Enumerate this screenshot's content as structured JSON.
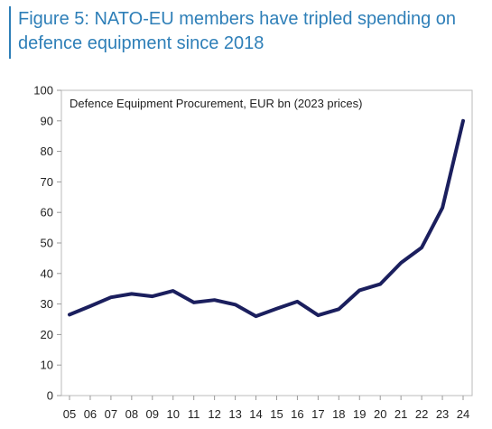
{
  "figure": {
    "title": "Figure 5: NATO-EU members have tripled spending on defence equipment since 2018"
  },
  "colors": {
    "title": "#2e7fb8",
    "accent_bar": "#2e7fb8",
    "series_line": "#1b1f5e",
    "axis": "#999999",
    "frame": "#bbbbbb",
    "text": "#222222"
  },
  "chart_data": {
    "type": "line",
    "title": "Defence Equipment Procurement, EUR bn (2023 prices)",
    "xlabel": "",
    "ylabel": "",
    "ylim": [
      0,
      100
    ],
    "yticks": [
      0,
      10,
      20,
      30,
      40,
      50,
      60,
      70,
      80,
      90,
      100
    ],
    "grid": false,
    "legend": "none",
    "categories": [
      "05",
      "06",
      "07",
      "08",
      "09",
      "10",
      "11",
      "12",
      "13",
      "14",
      "15",
      "16",
      "17",
      "18",
      "19",
      "20",
      "21",
      "22",
      "23",
      "24"
    ],
    "series": [
      {
        "values": [
          26.5,
          29.3,
          32.2,
          33.3,
          32.5,
          34.3,
          30.5,
          31.3,
          29.8,
          26.0,
          28.5,
          30.8,
          26.3,
          28.3,
          34.5,
          36.5,
          43.5,
          48.5,
          61.5,
          90.0
        ]
      }
    ]
  }
}
